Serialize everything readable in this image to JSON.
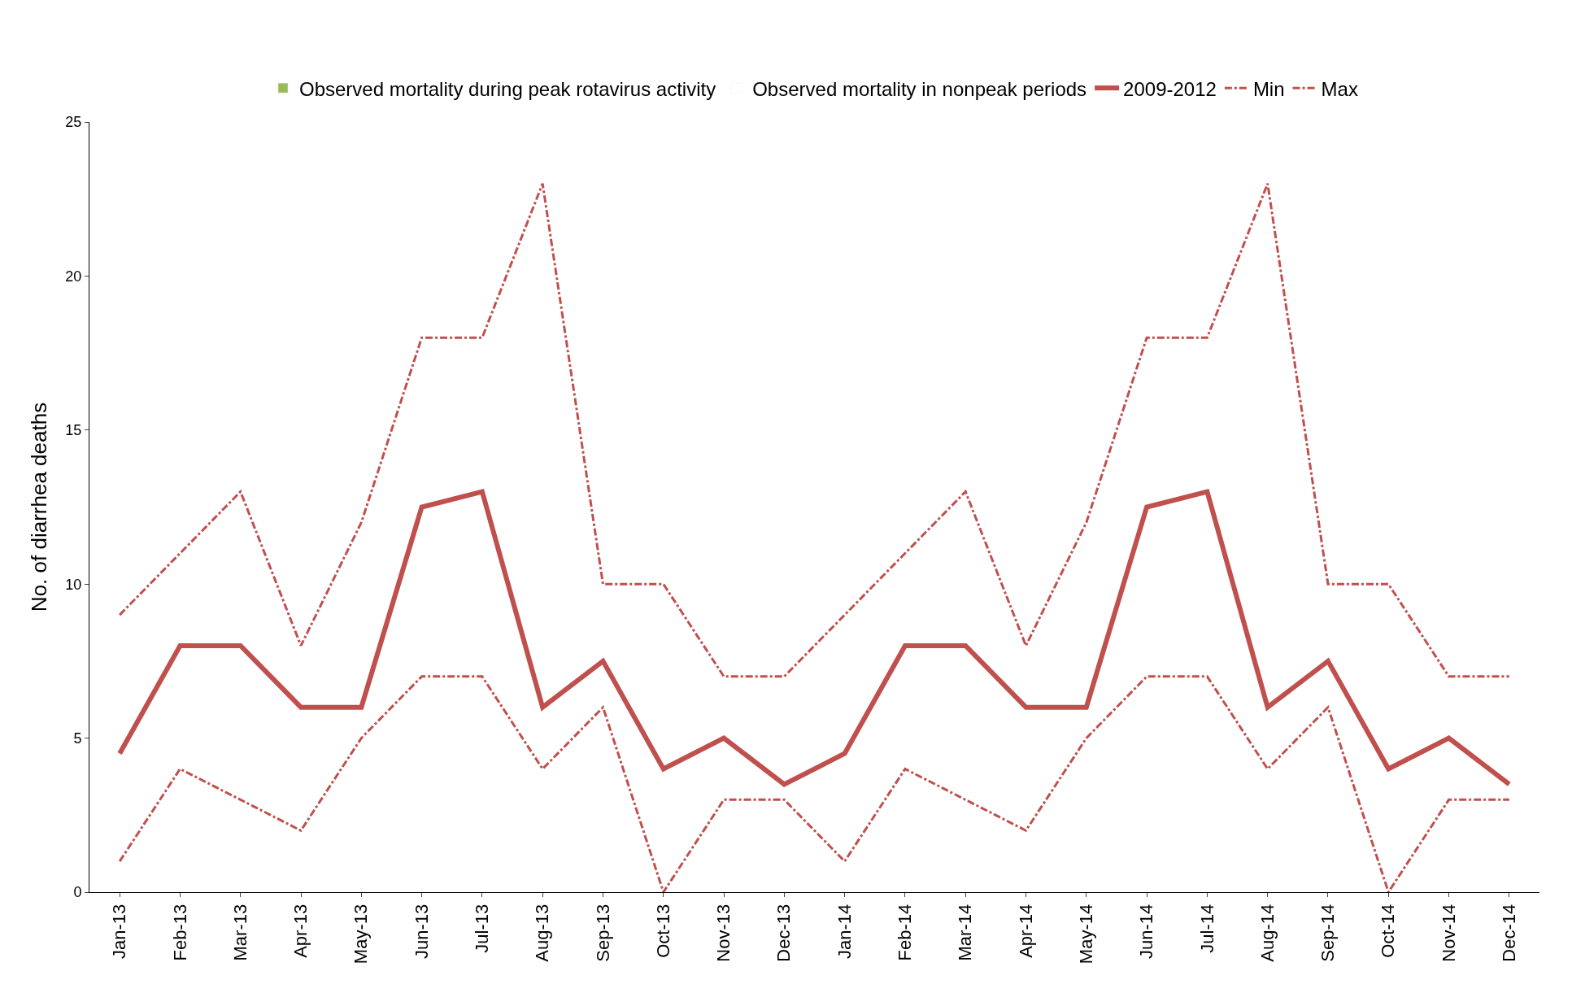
{
  "chart_data": {
    "type": "line",
    "ylabel": "No. of diarrhea deaths",
    "categories": [
      "Jan-13",
      "Feb-13",
      "Mar-13",
      "Apr-13",
      "May-13",
      "Jun-13",
      "Jul-13",
      "Aug-13",
      "Sep-13",
      "Oct-13",
      "Nov-13",
      "Dec-13",
      "Jan-14",
      "Feb-14",
      "Mar-14",
      "Apr-14",
      "May-14",
      "Jun-14",
      "Jul-14",
      "Aug-14",
      "Sep-14",
      "Oct-14",
      "Nov-14",
      "Dec-14"
    ],
    "series": [
      {
        "name": "Observed mortality during peak rotavirus activity",
        "type": "bar",
        "color": "#9bbb59",
        "values": [
          null,
          null,
          null,
          null,
          null,
          null,
          null,
          null,
          null,
          null,
          null,
          null,
          null,
          null,
          null,
          null,
          null,
          null,
          null,
          null,
          null,
          null,
          null,
          null
        ]
      },
      {
        "name": "Observed mortality in nonpeak periods",
        "type": "bar",
        "color": "#ffffff",
        "values": [
          null,
          null,
          null,
          null,
          null,
          null,
          null,
          null,
          null,
          null,
          null,
          null,
          null,
          null,
          null,
          null,
          null,
          null,
          null,
          null,
          null,
          null,
          null,
          null
        ]
      },
      {
        "name": "2009-2012",
        "color": "#c0504d",
        "line_style": "solid",
        "values": [
          4.5,
          8,
          8,
          6,
          6,
          12.5,
          13,
          6,
          7.5,
          4,
          5,
          3.5,
          4.5,
          8,
          8,
          6,
          6,
          12.5,
          13,
          6,
          7.5,
          4,
          5,
          3.5
        ]
      },
      {
        "name": "Min",
        "color": "#c0504d",
        "line_style": "dashdot",
        "values": [
          1,
          4,
          3,
          2,
          5,
          7,
          7,
          4,
          6,
          0,
          3,
          3,
          1,
          4,
          3,
          2,
          5,
          7,
          7,
          4,
          6,
          0,
          3,
          3
        ]
      },
      {
        "name": "Max",
        "color": "#c0504d",
        "line_style": "dashdot",
        "values": [
          9,
          11,
          13,
          8,
          12,
          18,
          18,
          23,
          10,
          10,
          7,
          7,
          9,
          11,
          13,
          8,
          12,
          18,
          18,
          23,
          10,
          10,
          7,
          7
        ]
      }
    ],
    "ylim": [
      0,
      25
    ],
    "yticks": [
      0,
      5,
      10,
      15,
      20,
      25
    ],
    "legend": "top",
    "marker": "none"
  }
}
